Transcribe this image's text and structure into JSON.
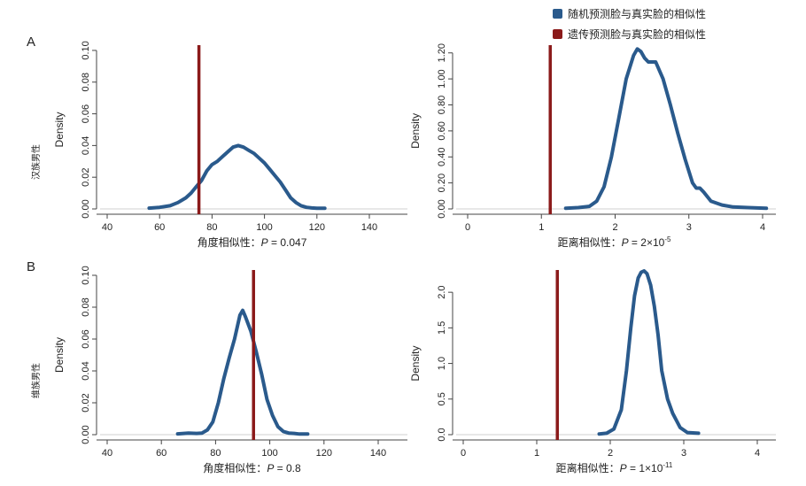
{
  "colors": {
    "random": "#2a5a8c",
    "genetic": "#8b1a1a",
    "axis": "#444444",
    "ref": "#d0d0d0"
  },
  "legend": {
    "random_label": "随机预测脸与真实脸的相似性",
    "genetic_label": "遗传预测脸与真实脸的相似性"
  },
  "panel_labels": {
    "A": "A",
    "B": "B"
  },
  "row_labels": {
    "row1": "汉族男性",
    "row2": "维族男性"
  },
  "chart_data": [
    {
      "id": "A-left",
      "type": "line",
      "row": "汉族男性",
      "ylabel": "Density",
      "xlabel_prefix": "角度相似性：",
      "p_label": "P",
      "p_text": " = 0.047",
      "xlim": [
        40,
        150
      ],
      "ylim": [
        0,
        0.105
      ],
      "xticks": [
        40,
        60,
        80,
        100,
        120,
        140
      ],
      "xtick_labels": [
        "40",
        "60",
        "80",
        "100",
        "120",
        "140"
      ],
      "yticks": [
        0,
        0.02,
        0.04,
        0.06,
        0.08,
        0.1
      ],
      "ytick_labels": [
        "0.00",
        "0.02",
        "0.04",
        "0.06",
        "0.08",
        "0.10"
      ],
      "random_x": [
        56,
        60,
        64,
        67,
        70,
        72,
        74,
        76,
        78,
        80,
        82,
        84,
        86,
        88,
        90,
        92,
        94,
        96,
        98,
        100,
        102,
        104,
        106,
        108,
        110,
        112,
        114,
        116,
        118,
        120,
        123
      ],
      "random_y": [
        0.0005,
        0.001,
        0.002,
        0.004,
        0.007,
        0.01,
        0.014,
        0.018,
        0.024,
        0.028,
        0.03,
        0.033,
        0.036,
        0.039,
        0.04,
        0.039,
        0.037,
        0.035,
        0.032,
        0.029,
        0.025,
        0.021,
        0.017,
        0.012,
        0.007,
        0.004,
        0.002,
        0.001,
        0.0006,
        0.0004,
        0.0004
      ],
      "genetic_x": 75
    },
    {
      "id": "A-right",
      "type": "line",
      "row": "汉族男性",
      "ylabel": "Density",
      "xlabel_prefix": "距离相似性：",
      "p_label": "P",
      "p_text": " = 2×10",
      "p_exp": "-5",
      "xlim": [
        -0.2,
        4.1
      ],
      "ylim": [
        0,
        1.28
      ],
      "xticks": [
        0,
        1,
        2,
        3,
        4
      ],
      "xtick_labels": [
        "0",
        "1",
        "2",
        "3",
        "4"
      ],
      "yticks": [
        0,
        0.2,
        0.4,
        0.6,
        0.8,
        1.0,
        1.2
      ],
      "ytick_labels": [
        "0.00",
        "0.20",
        "0.40",
        "0.60",
        "0.80",
        "1.00",
        "1.20"
      ],
      "random_x": [
        1.33,
        1.5,
        1.65,
        1.75,
        1.85,
        1.95,
        2.05,
        2.15,
        2.25,
        2.3,
        2.35,
        2.4,
        2.45,
        2.55,
        2.65,
        2.75,
        2.85,
        2.95,
        3.05,
        3.1,
        3.15,
        3.2,
        3.3,
        3.45,
        3.6,
        3.8,
        4.05
      ],
      "random_y": [
        0.005,
        0.01,
        0.02,
        0.06,
        0.17,
        0.4,
        0.7,
        1.0,
        1.18,
        1.23,
        1.21,
        1.16,
        1.13,
        1.13,
        1.0,
        0.8,
        0.58,
        0.38,
        0.2,
        0.16,
        0.16,
        0.13,
        0.06,
        0.03,
        0.015,
        0.01,
        0.005
      ],
      "genetic_x": 1.12
    },
    {
      "id": "B-left",
      "type": "line",
      "row": "维族男性",
      "ylabel": "Density",
      "xlabel_prefix": "角度相似性：",
      "p_label": "P",
      "p_text": " = 0.8",
      "xlim": [
        40,
        150
      ],
      "ylim": [
        0,
        0.105
      ],
      "xticks": [
        40,
        60,
        80,
        100,
        120,
        140
      ],
      "xtick_labels": [
        "40",
        "60",
        "80",
        "100",
        "120",
        "140"
      ],
      "yticks": [
        0,
        0.02,
        0.04,
        0.06,
        0.08,
        0.1
      ],
      "ytick_labels": [
        "0.00",
        "0.02",
        "0.04",
        "0.06",
        "0.08",
        "0.10"
      ],
      "random_x": [
        66,
        70,
        73,
        75,
        77,
        79,
        81,
        83,
        85,
        87,
        89,
        90,
        91,
        93,
        95,
        97,
        99,
        101,
        103,
        105,
        107,
        109,
        111,
        114
      ],
      "random_y": [
        0.0005,
        0.001,
        0.0008,
        0.001,
        0.003,
        0.008,
        0.02,
        0.035,
        0.048,
        0.06,
        0.075,
        0.078,
        0.074,
        0.065,
        0.052,
        0.038,
        0.022,
        0.012,
        0.005,
        0.002,
        0.001,
        0.0008,
        0.0004,
        0.0004
      ],
      "genetic_x": 94
    },
    {
      "id": "B-right",
      "type": "line",
      "row": "维族男性",
      "ylabel": "Density",
      "xlabel_prefix": "距离相似性：",
      "p_label": "P",
      "p_text": " = 1×10",
      "p_exp": "-11",
      "xlim": [
        -0.2,
        4.1
      ],
      "ylim": [
        0,
        2.35
      ],
      "xticks": [
        0,
        1,
        2,
        3,
        4
      ],
      "xtick_labels": [
        "0",
        "1",
        "2",
        "3",
        "4"
      ],
      "yticks": [
        0,
        0.5,
        1.0,
        1.5,
        2.0
      ],
      "ytick_labels": [
        "0.0",
        "0.5",
        "1.0",
        "1.5",
        "2.0"
      ],
      "random_x": [
        1.85,
        1.95,
        2.05,
        2.15,
        2.22,
        2.28,
        2.33,
        2.38,
        2.42,
        2.46,
        2.5,
        2.55,
        2.6,
        2.65,
        2.7,
        2.78,
        2.85,
        2.95,
        3.05,
        3.2
      ],
      "random_y": [
        0.01,
        0.02,
        0.08,
        0.35,
        0.9,
        1.5,
        1.95,
        2.2,
        2.28,
        2.3,
        2.26,
        2.1,
        1.8,
        1.4,
        0.9,
        0.5,
        0.3,
        0.1,
        0.03,
        0.02
      ],
      "genetic_x": 1.28
    }
  ]
}
